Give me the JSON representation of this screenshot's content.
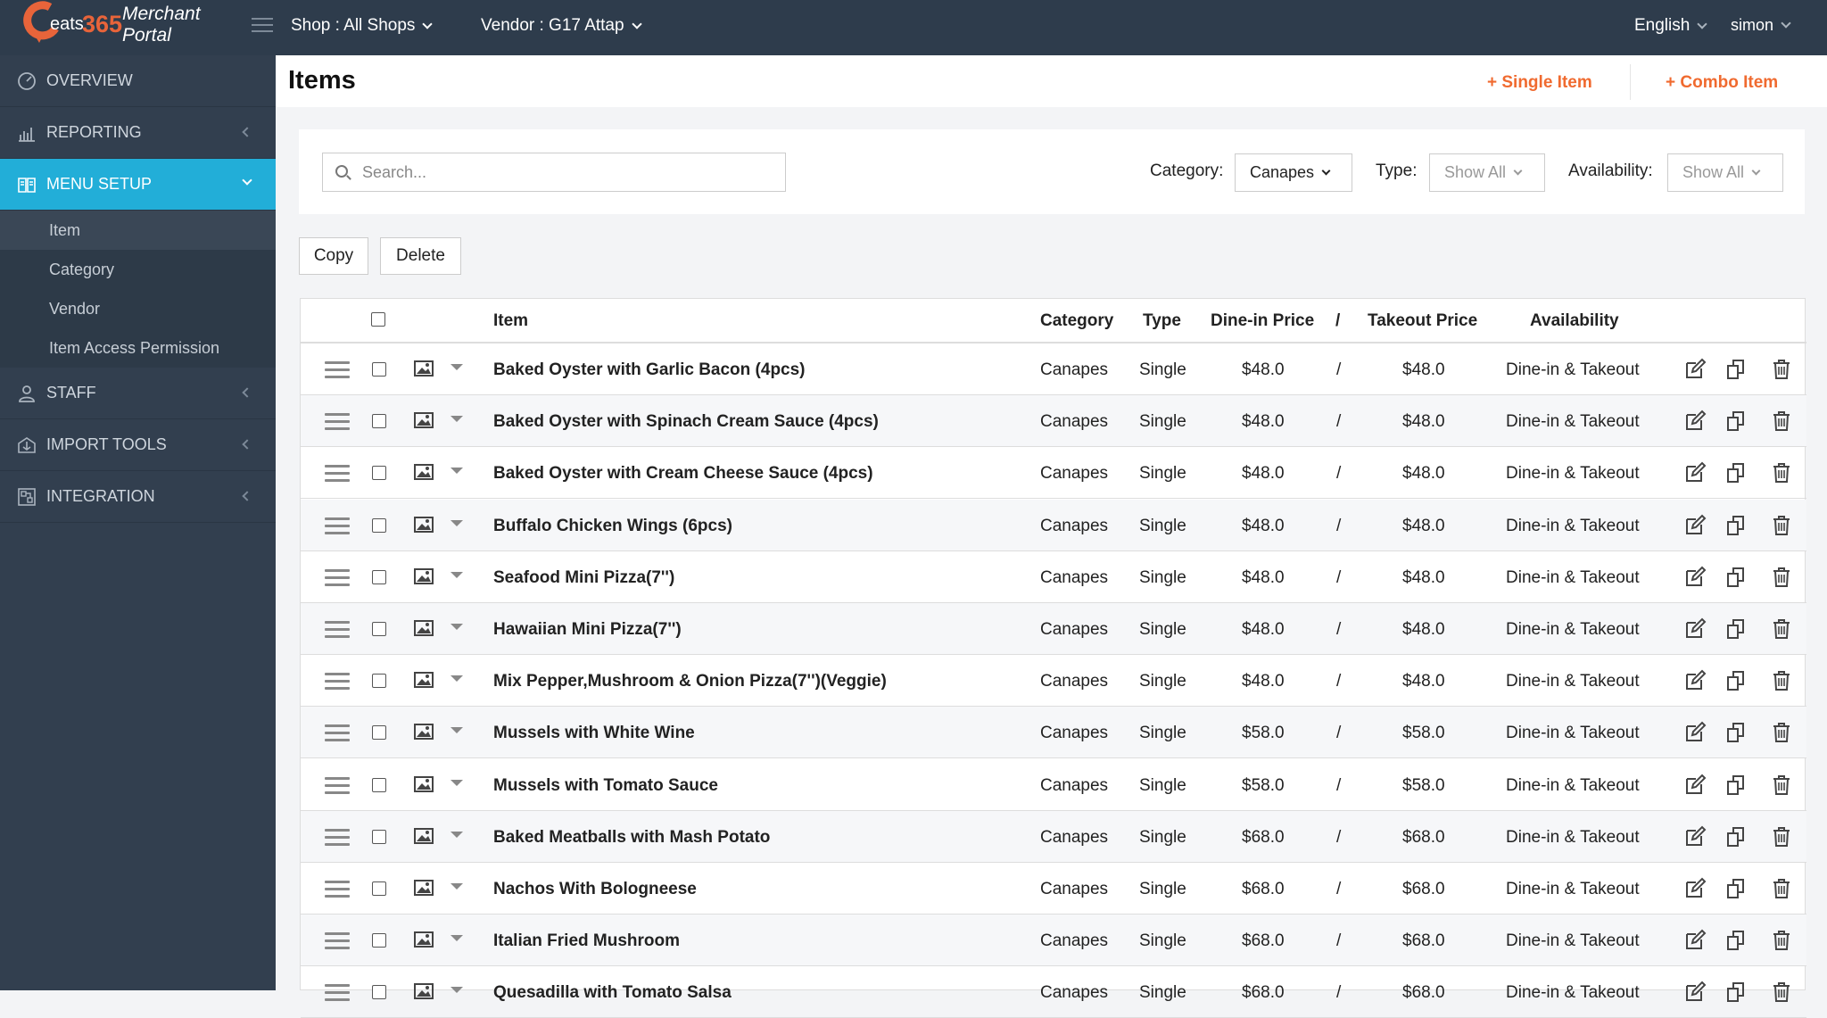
{
  "brand": {
    "eats": "eats",
    "num": "365",
    "merchant": "Merchant",
    "portal": "Portal"
  },
  "topbar": {
    "shop": "Shop : All Shops",
    "vendor": "Vendor : G17 Attap",
    "language": "English",
    "user": "simon"
  },
  "sidebar": {
    "items": [
      {
        "label": "OVERVIEW",
        "icon": "gauge-icon"
      },
      {
        "label": "REPORTING",
        "icon": "bar-chart-icon"
      },
      {
        "label": "MENU SETUP",
        "icon": "book-icon",
        "active": true
      },
      {
        "label": "STAFF",
        "icon": "user-icon"
      },
      {
        "label": "IMPORT TOOLS",
        "icon": "import-icon"
      },
      {
        "label": "INTEGRATION",
        "icon": "integration-icon"
      }
    ],
    "submenu": [
      "Item",
      "Category",
      "Vendor",
      "Item Access Permission"
    ]
  },
  "page": {
    "title": "Items",
    "add_single": "+ Single Item",
    "add_combo": "+ Combo Item"
  },
  "filters": {
    "search_placeholder": "Search...",
    "category_label": "Category:",
    "category_value": "Canapes",
    "type_label": "Type:",
    "type_value": "Show All",
    "availability_label": "Availability:",
    "availability_value": "Show All"
  },
  "actions": {
    "copy": "Copy",
    "delete": "Delete"
  },
  "table": {
    "headers": {
      "item": "Item",
      "category": "Category",
      "type": "Type",
      "dinein": "Dine-in Price",
      "slash": "/",
      "takeout": "Takeout Price",
      "availability": "Availability"
    },
    "rows": [
      {
        "item": "Baked Oyster with Garlic Bacon (4pcs)",
        "category": "Canapes",
        "type": "Single",
        "dinein": "$48.0",
        "slash": "/",
        "takeout": "$48.0",
        "availability": "Dine-in & Takeout"
      },
      {
        "item": "Baked Oyster with Spinach Cream Sauce (4pcs)",
        "category": "Canapes",
        "type": "Single",
        "dinein": "$48.0",
        "slash": "/",
        "takeout": "$48.0",
        "availability": "Dine-in & Takeout"
      },
      {
        "item": "Baked Oyster with Cream Cheese Sauce (4pcs)",
        "category": "Canapes",
        "type": "Single",
        "dinein": "$48.0",
        "slash": "/",
        "takeout": "$48.0",
        "availability": "Dine-in & Takeout"
      },
      {
        "item": "Buffalo Chicken Wings (6pcs)",
        "category": "Canapes",
        "type": "Single",
        "dinein": "$48.0",
        "slash": "/",
        "takeout": "$48.0",
        "availability": "Dine-in & Takeout"
      },
      {
        "item": "Seafood Mini Pizza(7'')",
        "category": "Canapes",
        "type": "Single",
        "dinein": "$48.0",
        "slash": "/",
        "takeout": "$48.0",
        "availability": "Dine-in & Takeout"
      },
      {
        "item": "Hawaiian Mini Pizza(7'')",
        "category": "Canapes",
        "type": "Single",
        "dinein": "$48.0",
        "slash": "/",
        "takeout": "$48.0",
        "availability": "Dine-in & Takeout"
      },
      {
        "item": "Mix Pepper,Mushroom & Onion Pizza(7'')(Veggie)",
        "category": "Canapes",
        "type": "Single",
        "dinein": "$48.0",
        "slash": "/",
        "takeout": "$48.0",
        "availability": "Dine-in & Takeout"
      },
      {
        "item": "Mussels with White Wine",
        "category": "Canapes",
        "type": "Single",
        "dinein": "$58.0",
        "slash": "/",
        "takeout": "$58.0",
        "availability": "Dine-in & Takeout"
      },
      {
        "item": "Mussels with Tomato Sauce",
        "category": "Canapes",
        "type": "Single",
        "dinein": "$58.0",
        "slash": "/",
        "takeout": "$58.0",
        "availability": "Dine-in & Takeout"
      },
      {
        "item": "Baked Meatballs with Mash Potato",
        "category": "Canapes",
        "type": "Single",
        "dinein": "$68.0",
        "slash": "/",
        "takeout": "$68.0",
        "availability": "Dine-in & Takeout"
      },
      {
        "item": "Nachos With Bologneese",
        "category": "Canapes",
        "type": "Single",
        "dinein": "$68.0",
        "slash": "/",
        "takeout": "$68.0",
        "availability": "Dine-in & Takeout"
      },
      {
        "item": "Italian Fried Mushroom",
        "category": "Canapes",
        "type": "Single",
        "dinein": "$68.0",
        "slash": "/",
        "takeout": "$68.0",
        "availability": "Dine-in & Takeout"
      },
      {
        "item": "Quesadilla with Tomato Salsa",
        "category": "Canapes",
        "type": "Single",
        "dinein": "$68.0",
        "slash": "/",
        "takeout": "$68.0",
        "availability": "Dine-in & Takeout"
      }
    ]
  },
  "colors": {
    "topbar": "#2e3c4c",
    "sidebar": "#323f4f",
    "active": "#22aed8",
    "accent": "#f06a2f"
  }
}
